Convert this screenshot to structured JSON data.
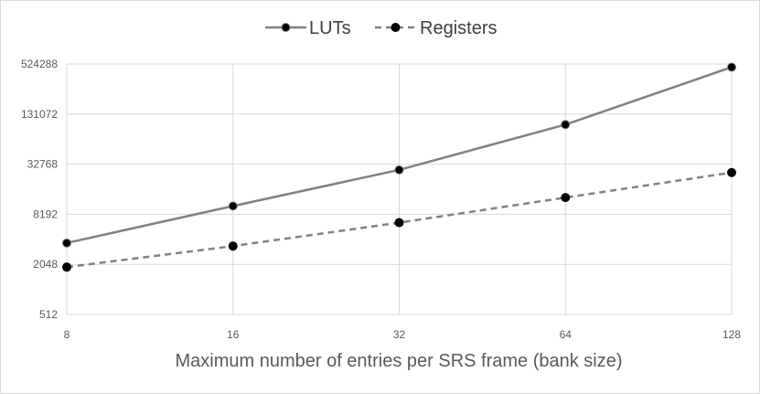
{
  "chart_data": {
    "type": "line",
    "title": "",
    "xlabel": "Maximum number of entries per SRS frame (bank size)",
    "ylabel": "",
    "x": [
      8,
      16,
      32,
      64,
      128
    ],
    "x_tick_labels": [
      "8",
      "16",
      "32",
      "64",
      "128"
    ],
    "yscale": "log2",
    "ylim": [
      512,
      524288
    ],
    "y_ticks": [
      512,
      2048,
      8192,
      32768,
      131072,
      524288
    ],
    "y_tick_labels": [
      "512",
      "2048",
      "8192",
      "32768",
      "131072",
      "524288"
    ],
    "grid": true,
    "legend_position": "top",
    "series": [
      {
        "name": "LUTs",
        "values": [
          3700,
          10300,
          28000,
          98000,
          480000
        ],
        "line_style": "solid",
        "color": "#808080",
        "marker_color": "#000000"
      },
      {
        "name": "Registers",
        "values": [
          1900,
          3400,
          6500,
          13000,
          26000
        ],
        "line_style": "dashed",
        "color": "#808080",
        "marker_color": "#000000"
      }
    ]
  }
}
